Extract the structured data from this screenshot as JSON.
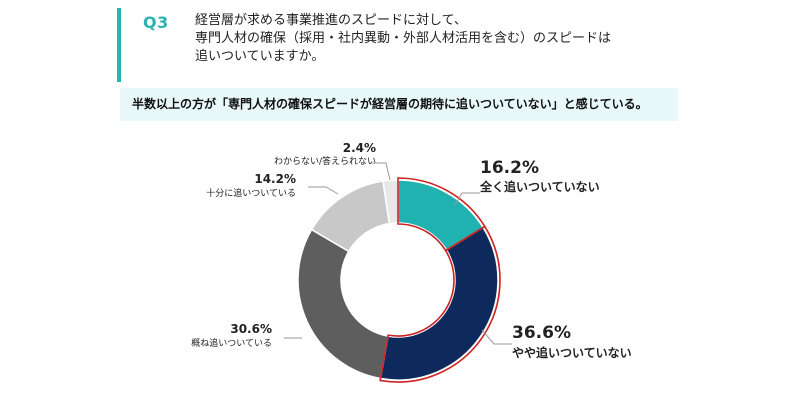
{
  "question": {
    "number": "Q3",
    "lines": [
      "経営層が求める事業推進のスピードに対して、",
      "専門人材の確保（採用・社内異動・外部人材活用を含む）のスピードは",
      "追いついていますか。"
    ]
  },
  "summary": "半数以上の方が「専門人材の確保スピードが経営層の期待に追いついていない」と感じている。",
  "colors": {
    "accent": "#2bb3b1",
    "summary_bg": "#e8f7f7",
    "highlight_outline": "#cc2222"
  },
  "chart_data": {
    "type": "pie",
    "variant": "donut",
    "title": "",
    "unit": "%",
    "slices": [
      {
        "label": "全く追いついていない",
        "value": 16.2,
        "color": "#20b2b0",
        "highlight": true
      },
      {
        "label": "やや追いついていない",
        "value": 36.6,
        "color": "#0e2a5c",
        "highlight": true
      },
      {
        "label": "概ね追いついている",
        "value": 30.6,
        "color": "#5e5e5e",
        "highlight": false
      },
      {
        "label": "十分に追いついている",
        "value": 14.2,
        "color": "#c8c8c8",
        "highlight": false
      },
      {
        "label": "わからない/答えられない",
        "value": 2.4,
        "color": "#e8e8e8",
        "highlight": false
      }
    ]
  }
}
